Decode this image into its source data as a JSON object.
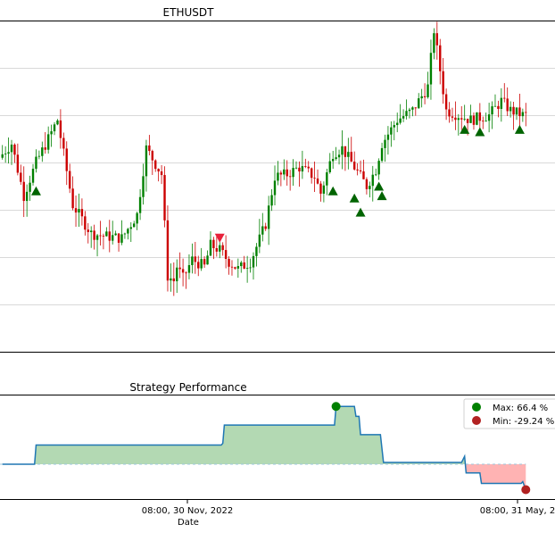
{
  "chart_data": [
    {
      "type": "candlestick",
      "title": "ETHUSDT",
      "grid": true,
      "ylim": [
        0,
        7
      ],
      "up_color": "#008000",
      "down_color": "#cc0000",
      "price_path": [
        [
          0,
          4.1
        ],
        [
          4,
          4.4
        ],
        [
          8,
          3.3
        ],
        [
          12,
          4.0
        ],
        [
          16,
          4.5
        ],
        [
          19,
          4.9
        ],
        [
          24,
          3.1
        ],
        [
          30,
          2.5
        ],
        [
          34,
          2.45
        ],
        [
          40,
          2.4
        ],
        [
          45,
          2.9
        ],
        [
          48,
          4.3
        ],
        [
          53,
          3.75
        ],
        [
          55,
          1.6
        ],
        [
          57,
          1.5
        ],
        [
          58,
          1.8
        ],
        [
          60,
          1.55
        ],
        [
          63,
          1.95
        ],
        [
          67,
          1.8
        ],
        [
          69,
          2.25
        ],
        [
          72,
          2.15
        ],
        [
          75,
          1.9
        ],
        [
          78,
          1.75
        ],
        [
          82,
          1.9
        ],
        [
          87,
          2.7
        ],
        [
          90,
          3.7
        ],
        [
          94,
          3.75
        ],
        [
          98,
          3.9
        ],
        [
          103,
          3.7
        ],
        [
          105,
          3.35
        ],
        [
          109,
          4.2
        ],
        [
          112,
          4.3
        ],
        [
          116,
          3.9
        ],
        [
          120,
          3.5
        ],
        [
          123,
          3.85
        ],
        [
          125,
          4.4
        ],
        [
          130,
          4.9
        ],
        [
          135,
          5.1
        ],
        [
          140,
          5.6
        ],
        [
          142,
          6.8
        ],
        [
          146,
          5.1
        ],
        [
          150,
          5.0
        ],
        [
          154,
          4.9
        ],
        [
          160,
          5.0
        ],
        [
          164,
          5.3
        ],
        [
          167,
          5.1
        ],
        [
          171,
          5.0
        ]
      ],
      "signals": {
        "buy": [
          [
            11,
            3.4
          ],
          [
            108,
            3.4
          ],
          [
            115,
            3.25
          ],
          [
            117,
            2.95
          ],
          [
            123,
            3.5
          ],
          [
            124,
            3.3
          ],
          [
            151,
            4.7
          ],
          [
            156,
            4.65
          ],
          [
            169,
            4.7
          ]
        ],
        "sell": [
          [
            71,
            2.4
          ]
        ]
      }
    },
    {
      "type": "area",
      "title": "Strategy Performance",
      "xlabel": "Date",
      "x_ticks": [
        "08:00, 30 Nov, 2022",
        "08:00, 31 May, 2"
      ],
      "ylim": [
        -40,
        80
      ],
      "baseline": 0,
      "positive_fill": "#b3d9b3",
      "negative_fill": "#ffb3b3",
      "line_color": "#1f77b4",
      "values": [
        [
          0,
          0
        ],
        [
          10.5,
          0
        ],
        [
          11,
          22
        ],
        [
          71.5,
          22
        ],
        [
          72,
          24
        ],
        [
          72.5,
          45
        ],
        [
          108.5,
          45
        ],
        [
          109,
          66.4
        ],
        [
          115,
          66.4
        ],
        [
          115.5,
          55
        ],
        [
          116.5,
          55
        ],
        [
          117,
          34
        ],
        [
          123.5,
          34
        ],
        [
          124.5,
          2
        ],
        [
          150,
          2
        ],
        [
          151,
          9
        ],
        [
          151.5,
          -10
        ],
        [
          156,
          -10
        ],
        [
          156.5,
          -22
        ],
        [
          169.5,
          -22
        ],
        [
          170,
          -20
        ],
        [
          171,
          -29.24
        ]
      ],
      "max_marker": {
        "x": 109,
        "y": 66.4,
        "color": "#008000"
      },
      "min_marker": {
        "x": 171,
        "y": -29.24,
        "color": "#b22222"
      },
      "legend": {
        "placement": "top-right",
        "entries": [
          {
            "label": "Max: 66.4 %",
            "color": "#008000"
          },
          {
            "label": "Min: -29.24 %",
            "color": "#b22222"
          }
        ]
      }
    }
  ]
}
